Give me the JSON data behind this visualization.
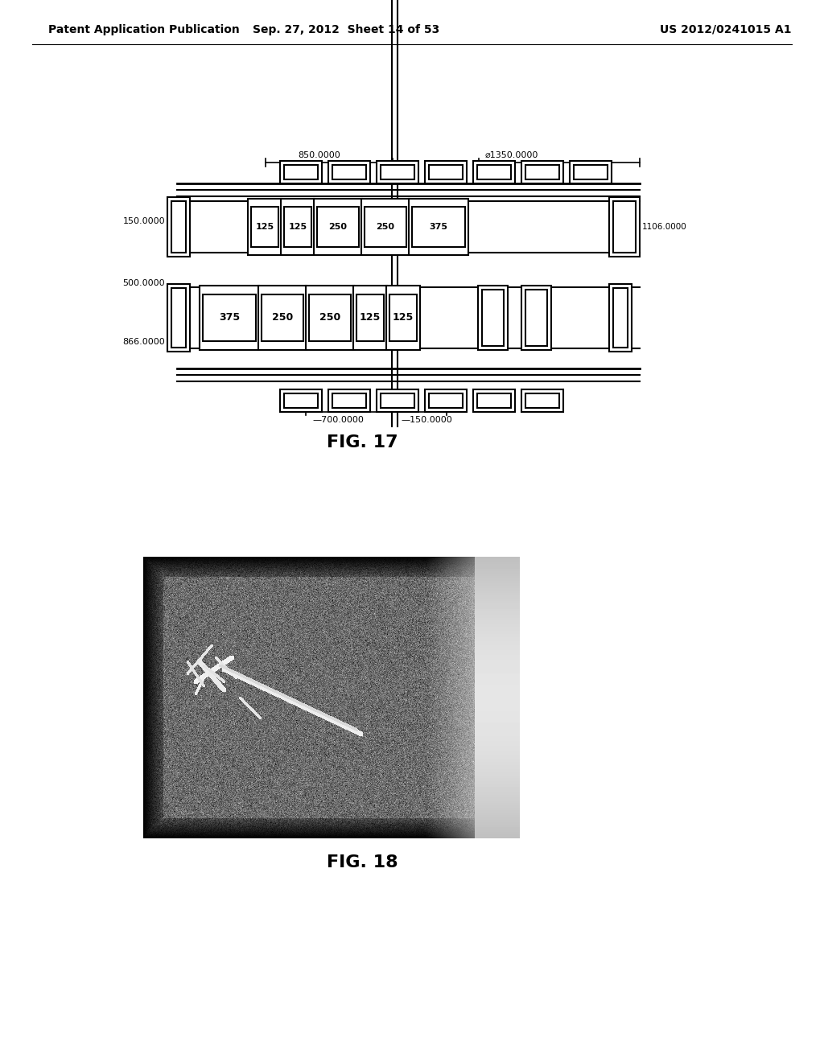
{
  "page_title_left": "Patent Application Publication",
  "page_title_mid": "Sep. 27, 2012  Sheet 14 of 53",
  "page_title_right": "US 2012/0241015 A1",
  "fig17_label": "FIG. 17",
  "fig18_label": "FIG. 18",
  "background_color": "#ffffff",
  "text_color": "#000000",
  "header_fontsize": 10,
  "fig_label_fontsize": 16
}
